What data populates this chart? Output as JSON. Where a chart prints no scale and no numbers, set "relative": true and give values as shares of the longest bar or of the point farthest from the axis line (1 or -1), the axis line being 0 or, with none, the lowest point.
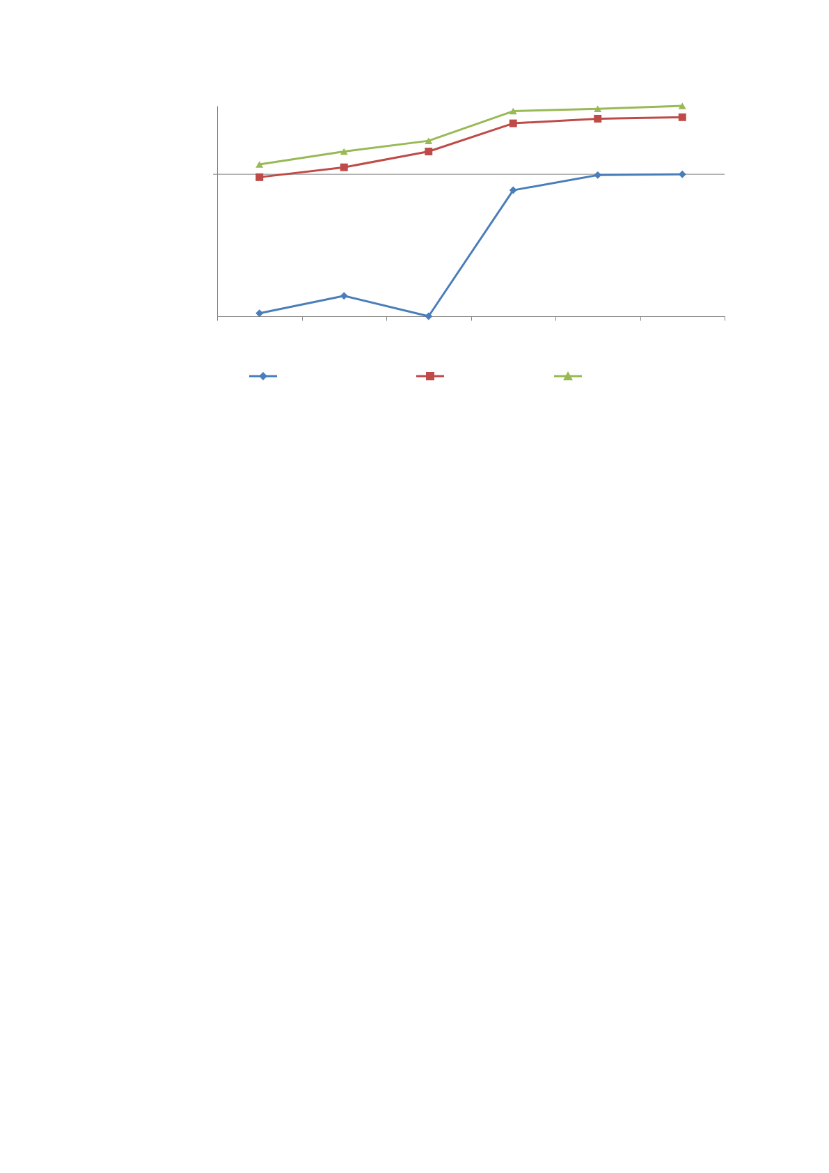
{
  "chart_data": {
    "type": "line",
    "relative": true,
    "categories": [
      null,
      null,
      null,
      null,
      null,
      null
    ],
    "series": [
      {
        "color": "#4a7ebb",
        "marker": "diamond",
        "values": [
          0.014,
          0.097,
          0.0,
          0.599,
          0.671,
          0.675
        ]
      },
      {
        "color": "#be4b48",
        "marker": "square",
        "values": [
          0.661,
          0.708,
          0.783,
          0.917,
          0.939,
          0.946
        ]
      },
      {
        "color": "#98b954",
        "marker": "triangle",
        "values": [
          0.722,
          0.783,
          0.834,
          0.975,
          0.986,
          1.0
        ]
      }
    ],
    "ref_lines": [
      {
        "axis": "y",
        "value": 0.675,
        "color": "#868686"
      }
    ],
    "legend": false,
    "line_style": "solid"
  }
}
